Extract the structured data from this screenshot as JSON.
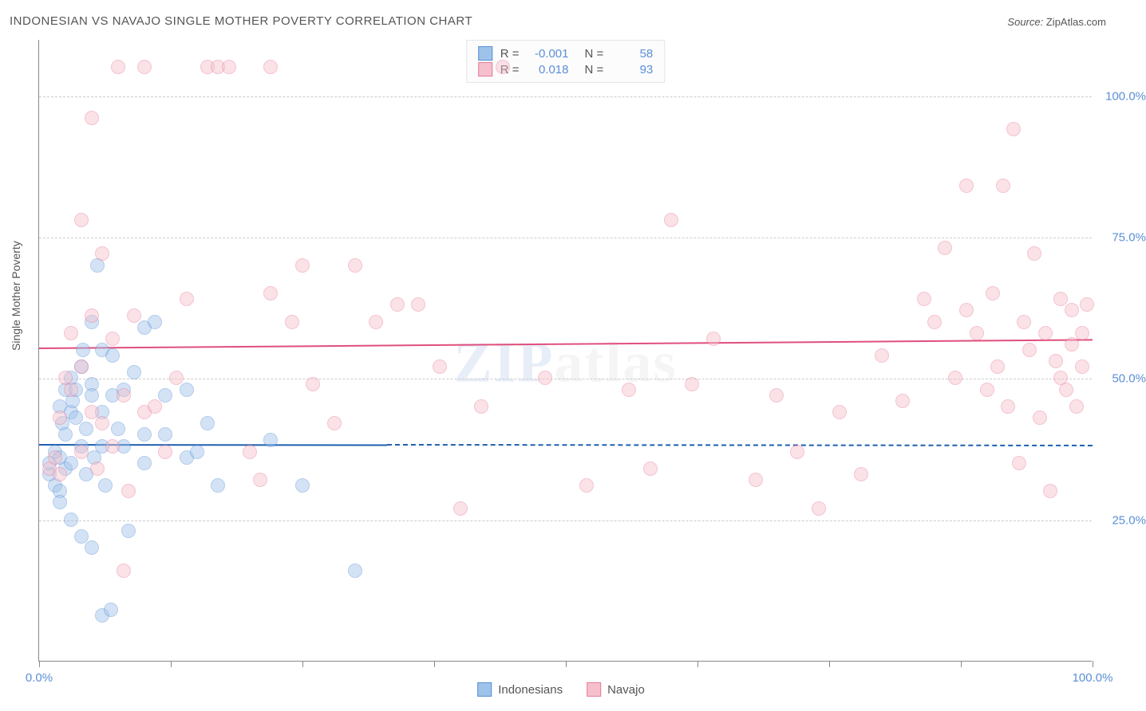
{
  "title": "INDONESIAN VS NAVAJO SINGLE MOTHER POVERTY CORRELATION CHART",
  "source_label": "Source:",
  "source_value": "ZipAtlas.com",
  "ylabel": "Single Mother Poverty",
  "watermark": "ZIPatlas",
  "chart": {
    "type": "scatter",
    "xlim": [
      0,
      100
    ],
    "ylim": [
      0,
      110
    ],
    "background_color": "#ffffff",
    "grid_color": "#cccccc",
    "yticks": [
      {
        "v": 25,
        "label": "25.0%"
      },
      {
        "v": 50,
        "label": "50.0%"
      },
      {
        "v": 75,
        "label": "75.0%"
      },
      {
        "v": 100,
        "label": "100.0%"
      }
    ],
    "xticks_minor": [
      0,
      12.5,
      25,
      37.5,
      50,
      62.5,
      75,
      87.5,
      100
    ],
    "xticks_label": [
      {
        "v": 0,
        "label": "0.0%"
      },
      {
        "v": 100,
        "label": "100.0%"
      }
    ],
    "marker_radius": 9,
    "marker_opacity": 0.45,
    "series": [
      {
        "name": "Indonesians",
        "fill": "#9ec3ea",
        "stroke": "#5b8fd6",
        "R": "-0.001",
        "N": "58",
        "trend": {
          "y0": 38.5,
          "y1": 38.3,
          "x0": 0,
          "x1_solid": 33,
          "x1_dash": 100,
          "color": "#1f5fb0",
          "width": 2
        },
        "points": [
          [
            1,
            33
          ],
          [
            1,
            35
          ],
          [
            1.5,
            31
          ],
          [
            1.5,
            37
          ],
          [
            2,
            36
          ],
          [
            2,
            30
          ],
          [
            2,
            28
          ],
          [
            2,
            45
          ],
          [
            2.2,
            42
          ],
          [
            2.5,
            40
          ],
          [
            2.5,
            34
          ],
          [
            2.5,
            48
          ],
          [
            3,
            35
          ],
          [
            3,
            25
          ],
          [
            3,
            44
          ],
          [
            3,
            50
          ],
          [
            3.2,
            46
          ],
          [
            3.5,
            43
          ],
          [
            3.5,
            48
          ],
          [
            4,
            22
          ],
          [
            4,
            38
          ],
          [
            4,
            52
          ],
          [
            4.2,
            55
          ],
          [
            4.5,
            41
          ],
          [
            4.5,
            33
          ],
          [
            5,
            20
          ],
          [
            5,
            49
          ],
          [
            5,
            47
          ],
          [
            5,
            60
          ],
          [
            5.2,
            36
          ],
          [
            5.5,
            70
          ],
          [
            6,
            8
          ],
          [
            6,
            44
          ],
          [
            6,
            55
          ],
          [
            6,
            38
          ],
          [
            6.3,
            31
          ],
          [
            6.8,
            9
          ],
          [
            7,
            47
          ],
          [
            7,
            54
          ],
          [
            7.5,
            41
          ],
          [
            8,
            48
          ],
          [
            8,
            38
          ],
          [
            8.5,
            23
          ],
          [
            9,
            51
          ],
          [
            10,
            35
          ],
          [
            10,
            40
          ],
          [
            10,
            59
          ],
          [
            11,
            60
          ],
          [
            12,
            47
          ],
          [
            12,
            40
          ],
          [
            14,
            36
          ],
          [
            14,
            48
          ],
          [
            15,
            37
          ],
          [
            16,
            42
          ],
          [
            17,
            31
          ],
          [
            22,
            39
          ],
          [
            25,
            31
          ],
          [
            30,
            16
          ]
        ]
      },
      {
        "name": "Navajo",
        "fill": "#f5c0cc",
        "stroke": "#e87b9a",
        "R": "0.018",
        "N": "93",
        "trend": {
          "y0": 55.5,
          "y1": 57,
          "x0": 0,
          "x1_solid": 100,
          "x1_dash": 100,
          "color": "#e04f7c",
          "width": 2
        },
        "points": [
          [
            1,
            34
          ],
          [
            1.5,
            36
          ],
          [
            2,
            43
          ],
          [
            2,
            33
          ],
          [
            2.5,
            50
          ],
          [
            3,
            58
          ],
          [
            3,
            48
          ],
          [
            4,
            37
          ],
          [
            4,
            52
          ],
          [
            4,
            78
          ],
          [
            5,
            44
          ],
          [
            5,
            61
          ],
          [
            5,
            96
          ],
          [
            5.5,
            34
          ],
          [
            6,
            72
          ],
          [
            6,
            42
          ],
          [
            7,
            38
          ],
          [
            7,
            57
          ],
          [
            7.5,
            105
          ],
          [
            8,
            16
          ],
          [
            8,
            47
          ],
          [
            8.5,
            30
          ],
          [
            9,
            61
          ],
          [
            10,
            105
          ],
          [
            10,
            44
          ],
          [
            11,
            45
          ],
          [
            12,
            37
          ],
          [
            13,
            50
          ],
          [
            14,
            64
          ],
          [
            16,
            105
          ],
          [
            17,
            105
          ],
          [
            18,
            105
          ],
          [
            20,
            37
          ],
          [
            21,
            32
          ],
          [
            22,
            65
          ],
          [
            22,
            105
          ],
          [
            24,
            60
          ],
          [
            25,
            70
          ],
          [
            26,
            49
          ],
          [
            28,
            42
          ],
          [
            30,
            70
          ],
          [
            32,
            60
          ],
          [
            34,
            63
          ],
          [
            36,
            63
          ],
          [
            38,
            52
          ],
          [
            40,
            27
          ],
          [
            42,
            45
          ],
          [
            44,
            105
          ],
          [
            48,
            50
          ],
          [
            52,
            31
          ],
          [
            56,
            48
          ],
          [
            58,
            34
          ],
          [
            60,
            78
          ],
          [
            62,
            49
          ],
          [
            64,
            57
          ],
          [
            68,
            32
          ],
          [
            70,
            47
          ],
          [
            72,
            37
          ],
          [
            74,
            27
          ],
          [
            76,
            44
          ],
          [
            78,
            33
          ],
          [
            80,
            54
          ],
          [
            82,
            46
          ],
          [
            84,
            64
          ],
          [
            85,
            60
          ],
          [
            86,
            73
          ],
          [
            87,
            50
          ],
          [
            88,
            62
          ],
          [
            88,
            84
          ],
          [
            89,
            58
          ],
          [
            90,
            48
          ],
          [
            90.5,
            65
          ],
          [
            91,
            52
          ],
          [
            91.5,
            84
          ],
          [
            92,
            45
          ],
          [
            92.5,
            94
          ],
          [
            93,
            35
          ],
          [
            93.5,
            60
          ],
          [
            94,
            55
          ],
          [
            94.5,
            72
          ],
          [
            95,
            43
          ],
          [
            95.5,
            58
          ],
          [
            96,
            30
          ],
          [
            96.5,
            53
          ],
          [
            97,
            50
          ],
          [
            97,
            64
          ],
          [
            97.5,
            48
          ],
          [
            98,
            56
          ],
          [
            98,
            62
          ],
          [
            98.5,
            45
          ],
          [
            99,
            58
          ],
          [
            99,
            52
          ],
          [
            99.5,
            63
          ]
        ]
      }
    ]
  },
  "stats_box": {
    "r_label": "R =",
    "n_label": "N ="
  },
  "legend": {
    "series1": "Indonesians",
    "series2": "Navajo"
  }
}
